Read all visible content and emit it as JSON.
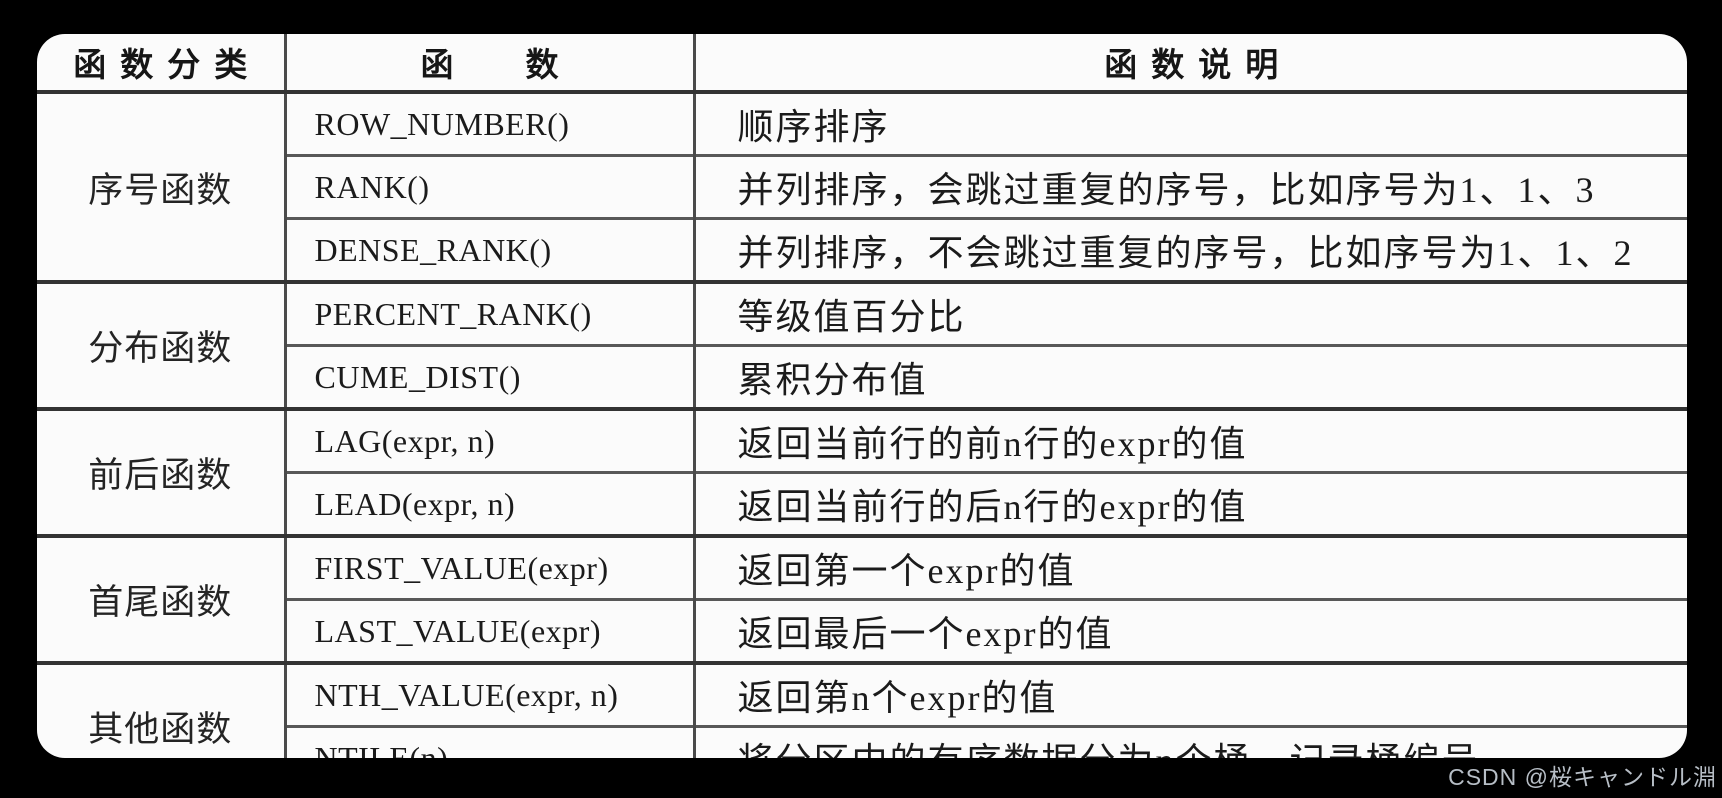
{
  "colors": {
    "page_bg": "#000000",
    "table_bg": "#fbfbfb",
    "grid_line_thick": "#333333",
    "grid_line_thin": "#585858",
    "text": "#1b1b1b",
    "watermark": "#b7bec6"
  },
  "watermark": {
    "text": "CSDN @桜キャンドル淵"
  },
  "table": {
    "headers": {
      "category": "函数分类",
      "function": "函　　数",
      "description": "函数说明"
    },
    "groups": [
      {
        "category": "序号函数",
        "rows": [
          {
            "func": "ROW_NUMBER()",
            "desc": "顺序排序"
          },
          {
            "func": "RANK()",
            "desc": "并列排序，会跳过重复的序号，比如序号为1、1、3"
          },
          {
            "func": "DENSE_RANK()",
            "desc": "并列排序，不会跳过重复的序号，比如序号为1、1、2"
          }
        ]
      },
      {
        "category": "分布函数",
        "rows": [
          {
            "func": "PERCENT_RANK()",
            "desc": "等级值百分比"
          },
          {
            "func": "CUME_DIST()",
            "desc": "累积分布值"
          }
        ]
      },
      {
        "category": "前后函数",
        "rows": [
          {
            "func": "LAG(expr, n)",
            "desc": "返回当前行的前n行的expr的值"
          },
          {
            "func": "LEAD(expr, n)",
            "desc": "返回当前行的后n行的expr的值"
          }
        ]
      },
      {
        "category": "首尾函数",
        "rows": [
          {
            "func": "FIRST_VALUE(expr)",
            "desc": "返回第一个expr的值"
          },
          {
            "func": "LAST_VALUE(expr)",
            "desc": "返回最后一个expr的值"
          }
        ]
      },
      {
        "category": "其他函数",
        "rows": [
          {
            "func": "NTH_VALUE(expr, n)",
            "desc": "返回第n个expr的值"
          },
          {
            "func": "NTILE(n)",
            "desc": "将分区中的有序数据分为n个桶，记录桶编号"
          }
        ]
      }
    ]
  }
}
